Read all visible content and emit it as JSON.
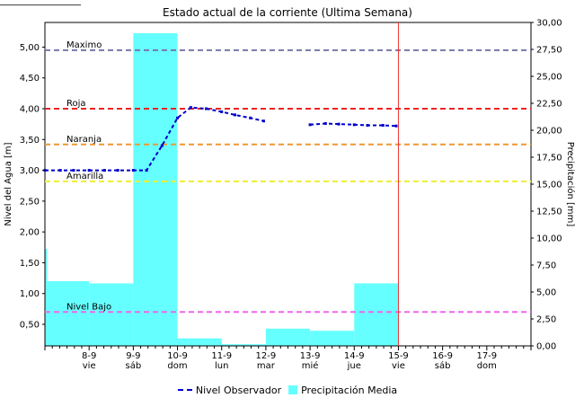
{
  "chart_data": {
    "type": "bar+line",
    "title": "Estado actual de la corriente (Ultima Semana)",
    "ylabel_left": "Nivel del Agua [m]",
    "ylabel_right": "Precipitación [mm]",
    "ylim_left": [
      0.15,
      5.4
    ],
    "ylim_right": [
      0.0,
      30.0
    ],
    "yticks_left": [
      "5,00",
      "4,50",
      "4,00",
      "3,50",
      "3,00",
      "2,50",
      "2,00",
      "1,50",
      "1,00",
      "0,50"
    ],
    "yticks_left_values": [
      5.0,
      4.5,
      4.0,
      3.5,
      3.0,
      2.5,
      2.0,
      1.5,
      1.0,
      0.5
    ],
    "yticks_right": [
      "30,00",
      "27,50",
      "25,00",
      "22,50",
      "20,00",
      "17,50",
      "15,00",
      "12,50",
      "10,00",
      "7,50",
      "5,00",
      "2,50",
      "0,00"
    ],
    "yticks_right_values": [
      30.0,
      27.5,
      25.0,
      22.5,
      20.0,
      17.5,
      15.0,
      12.5,
      10.0,
      7.5,
      5.0,
      2.5,
      0.0
    ],
    "xrange_days": [
      7.0,
      18.0
    ],
    "days": [
      {
        "x": 8,
        "date": "8-9",
        "dow": "vie"
      },
      {
        "x": 9,
        "date": "9-9",
        "dow": "sáb"
      },
      {
        "x": 10,
        "date": "10-9",
        "dow": "dom"
      },
      {
        "x": 11,
        "date": "11-9",
        "dow": "lun"
      },
      {
        "x": 12,
        "date": "12-9",
        "dow": "mar"
      },
      {
        "x": 13,
        "date": "13-9",
        "dow": "mié"
      },
      {
        "x": 14,
        "date": "14-9",
        "dow": "jue"
      },
      {
        "x": 15,
        "date": "15-9",
        "dow": "vie"
      },
      {
        "x": 16,
        "date": "16-9",
        "dow": "sáb"
      },
      {
        "x": 17,
        "date": "17-9",
        "dow": "dom"
      }
    ],
    "thresholds": [
      {
        "name": "Maximo",
        "value": 4.95,
        "color": "#7777aa"
      },
      {
        "name": "Roja",
        "value": 4.0,
        "color": "#ee2222"
      },
      {
        "name": "Naranja",
        "value": 3.42,
        "color": "#ee9933"
      },
      {
        "name": "Amarilla",
        "value": 2.82,
        "color": "#eeee33"
      },
      {
        "name": "Nivel Bajo",
        "value": 0.7,
        "color": "#ee66ee"
      }
    ],
    "current_time_x": 15.0,
    "current_time_color": "#ee3333",
    "series": [
      {
        "name": "Nivel Observador",
        "type": "line",
        "color": "#0000cc",
        "segments": [
          [
            [
              7.0,
              3.0
            ],
            [
              7.35,
              3.0
            ],
            [
              7.65,
              3.0
            ],
            [
              8.0,
              3.0
            ],
            [
              8.35,
              3.0
            ],
            [
              8.65,
              3.0
            ],
            [
              9.0,
              3.0
            ],
            [
              9.3,
              3.0
            ],
            [
              9.65,
              3.4
            ],
            [
              10.0,
              3.85
            ],
            [
              10.3,
              4.02
            ],
            [
              10.65,
              4.0
            ],
            [
              11.0,
              3.95
            ],
            [
              11.3,
              3.9
            ],
            [
              11.65,
              3.85
            ],
            [
              11.95,
              3.8
            ]
          ],
          [
            [
              13.0,
              3.74
            ],
            [
              13.35,
              3.76
            ],
            [
              13.65,
              3.75
            ],
            [
              14.0,
              3.74
            ],
            [
              14.3,
              3.73
            ],
            [
              14.65,
              3.73
            ],
            [
              14.95,
              3.72
            ]
          ]
        ]
      },
      {
        "name": "Precipitación Media",
        "type": "bar",
        "color": "#66ffff",
        "bars": [
          {
            "from": 7.0,
            "to": 7.05,
            "value": 9.0
          },
          {
            "from": 7.05,
            "to": 8.0,
            "value": 6.0
          },
          {
            "from": 8.0,
            "to": 9.0,
            "value": 5.8
          },
          {
            "from": 9.0,
            "to": 10.0,
            "value": 29.0
          },
          {
            "from": 10.0,
            "to": 11.0,
            "value": 0.7
          },
          {
            "from": 11.0,
            "to": 12.0,
            "value": 0.15
          },
          {
            "from": 12.0,
            "to": 13.0,
            "value": 1.6
          },
          {
            "from": 13.0,
            "to": 14.0,
            "value": 1.4
          },
          {
            "from": 14.0,
            "to": 15.0,
            "value": 5.8
          }
        ]
      }
    ],
    "legend_position": "bottom"
  }
}
